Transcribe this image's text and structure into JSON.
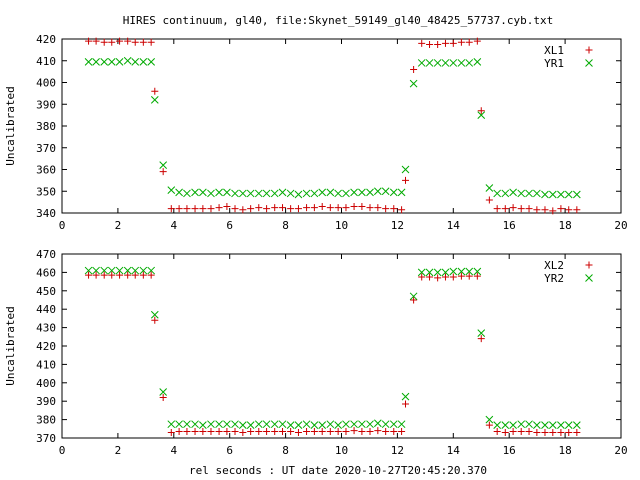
{
  "title": "HIRES continuum, gl40, file:Skynet_59149_gl40_48425_57737.cyb.txt",
  "xlabel": "rel seconds : UT date 2020-10-27T20:45:20.370",
  "chart_data": [
    {
      "type": "scatter",
      "ylabel": "Uncalibrated",
      "xlim": [
        0,
        20
      ],
      "ylim": [
        340,
        420
      ],
      "xticks": [
        "0",
        "2",
        "4",
        "6",
        "8",
        "10",
        "12",
        "14",
        "16",
        "18",
        "20"
      ],
      "yticks": [
        "340",
        "350",
        "360",
        "370",
        "380",
        "390",
        "400",
        "410",
        "420"
      ],
      "legend_position": "top-right",
      "x": [
        0.95,
        1.22,
        1.51,
        1.78,
        2.06,
        2.35,
        2.62,
        2.91,
        3.19,
        3.32,
        3.62,
        3.91,
        4.19,
        4.47,
        4.76,
        5.04,
        5.33,
        5.62,
        5.9,
        6.19,
        6.47,
        6.75,
        7.04,
        7.32,
        7.61,
        7.89,
        8.18,
        8.46,
        8.75,
        9.03,
        9.31,
        9.6,
        9.88,
        10.16,
        10.45,
        10.73,
        11.02,
        11.3,
        11.58,
        11.87,
        12.15,
        12.29,
        12.58,
        12.87,
        13.15,
        13.44,
        13.72,
        14.0,
        14.29,
        14.57,
        14.86,
        15.0,
        15.29,
        15.57,
        15.86,
        16.14,
        16.43,
        16.71,
        16.99,
        17.28,
        17.56,
        17.85,
        18.13,
        18.42
      ],
      "series": [
        {
          "name": "XL1",
          "color": "#cc0000",
          "marker": "plus",
          "values": [
            419,
            419,
            418.5,
            418.5,
            419,
            419,
            418.5,
            418.5,
            418.5,
            396,
            359,
            342,
            342,
            342,
            342,
            342,
            342,
            342.5,
            343,
            342,
            341.5,
            342,
            342.5,
            342,
            342.5,
            342.5,
            342,
            342,
            342.5,
            342.5,
            343,
            342.5,
            342.5,
            342.5,
            343,
            343,
            342.5,
            342.5,
            342,
            342,
            341.5,
            355,
            406,
            418,
            417.5,
            417.5,
            418,
            418,
            418.5,
            418.5,
            419,
            387,
            346,
            342,
            342,
            342.5,
            342,
            342,
            341.5,
            341.5,
            341,
            342,
            341.5,
            341.5
          ]
        },
        {
          "name": "YR1",
          "color": "#00aa00",
          "marker": "cross",
          "values": [
            409.5,
            409.5,
            409.5,
            409.5,
            409.5,
            410,
            409.5,
            409.5,
            409.5,
            392,
            362,
            350.5,
            349.5,
            349,
            349.5,
            349.5,
            349,
            349.5,
            349.5,
            349,
            349,
            349,
            349,
            349,
            349,
            349.5,
            349,
            348.5,
            349,
            349,
            349.5,
            349.5,
            349,
            349,
            349.5,
            349.5,
            349.5,
            350,
            350,
            349.5,
            349.5,
            360,
            399.5,
            409,
            409,
            409,
            409,
            409,
            409,
            409,
            409.5,
            385,
            351.5,
            349,
            349,
            349.5,
            349,
            349,
            349,
            348.5,
            348.5,
            348.5,
            348.5,
            348.5
          ]
        }
      ]
    },
    {
      "type": "scatter",
      "ylabel": "Uncalibrated",
      "xlim": [
        0,
        20
      ],
      "ylim": [
        370,
        470
      ],
      "xticks": [
        "0",
        "2",
        "4",
        "6",
        "8",
        "10",
        "12",
        "14",
        "16",
        "18",
        "20"
      ],
      "yticks": [
        "370",
        "380",
        "390",
        "400",
        "410",
        "420",
        "430",
        "440",
        "450",
        "460",
        "470"
      ],
      "legend_position": "top-right",
      "x": [
        0.95,
        1.22,
        1.51,
        1.78,
        2.06,
        2.35,
        2.62,
        2.91,
        3.19,
        3.32,
        3.62,
        3.91,
        4.19,
        4.47,
        4.76,
        5.04,
        5.33,
        5.62,
        5.9,
        6.19,
        6.47,
        6.75,
        7.04,
        7.32,
        7.61,
        7.89,
        8.18,
        8.46,
        8.75,
        9.03,
        9.31,
        9.6,
        9.88,
        10.16,
        10.45,
        10.73,
        11.02,
        11.3,
        11.58,
        11.87,
        12.15,
        12.29,
        12.58,
        12.87,
        13.15,
        13.44,
        13.72,
        14.0,
        14.29,
        14.57,
        14.86,
        15.0,
        15.29,
        15.57,
        15.86,
        16.14,
        16.43,
        16.71,
        16.99,
        17.28,
        17.56,
        17.85,
        18.13,
        18.42
      ],
      "series": [
        {
          "name": "XL2",
          "color": "#cc0000",
          "marker": "plus",
          "values": [
            458.5,
            458.5,
            458.5,
            458.5,
            458.5,
            458.5,
            458.5,
            458.5,
            458.5,
            434,
            392,
            373,
            373.5,
            373.5,
            373.5,
            373.5,
            373.5,
            373.5,
            373.5,
            373.5,
            373,
            373.5,
            373.5,
            373.5,
            373.5,
            373.5,
            373.5,
            373,
            373.5,
            373.5,
            373.5,
            373.5,
            373.5,
            373.5,
            374,
            373.5,
            373.5,
            374,
            373.5,
            373.5,
            373.5,
            388.5,
            445,
            457.5,
            457.5,
            457,
            457.5,
            457.5,
            458,
            458,
            458,
            424,
            377,
            373.5,
            373,
            373.5,
            373.5,
            373.5,
            373,
            373,
            373,
            373,
            373,
            373
          ]
        },
        {
          "name": "YR2",
          "color": "#00aa00",
          "marker": "cross",
          "values": [
            461,
            461,
            461,
            461,
            461,
            461,
            461,
            461,
            461,
            437,
            395,
            377.5,
            377.5,
            377.5,
            377.5,
            377,
            377.5,
            377.5,
            377.5,
            377.5,
            377,
            377,
            377.5,
            377.5,
            377.5,
            377.5,
            377,
            377,
            377.5,
            377,
            377,
            377.5,
            377,
            377.5,
            377.5,
            377.5,
            377.5,
            378,
            377.5,
            377.5,
            377.5,
            392.5,
            447,
            460,
            460,
            460,
            460,
            460.5,
            460.5,
            460.5,
            460.5,
            427,
            380,
            377,
            377,
            377,
            377.5,
            377.5,
            377,
            377,
            377,
            377,
            377,
            377
          ]
        }
      ]
    }
  ]
}
